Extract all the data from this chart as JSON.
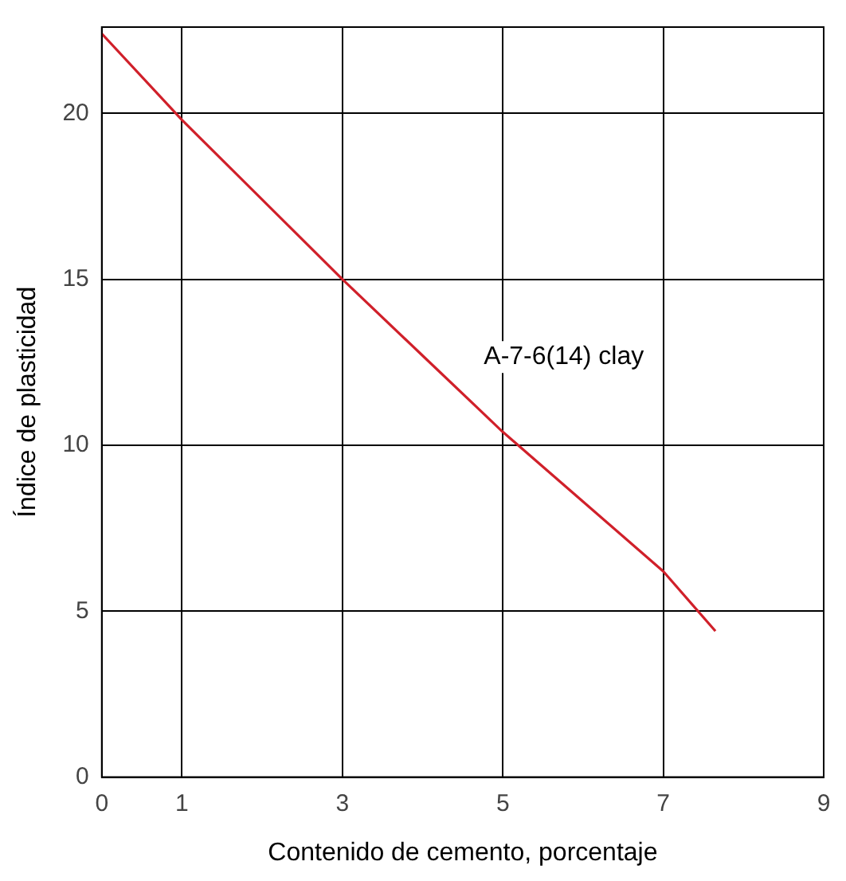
{
  "chart_data": {
    "type": "line",
    "xlabel": "Contenido de cemento, porcentaje",
    "ylabel": "Índice de plasticidad",
    "x": [
      0,
      1,
      2,
      3,
      4,
      5,
      6,
      7,
      7.65
    ],
    "series": [
      {
        "color": "#d0202a",
        "values": [
          22.4,
          19.8,
          17.4,
          15,
          12.7,
          10.4,
          8.3,
          6.2,
          4.4
        ]
      }
    ],
    "xlim": [
      0,
      9
    ],
    "xticks": [
      0,
      1,
      3,
      5,
      7,
      9
    ],
    "ylim": [
      0,
      22.6
    ],
    "yticks": [
      0,
      5,
      10,
      15,
      20
    ],
    "grid": true,
    "legend": false,
    "marker": "none",
    "line_style": "solid",
    "annotations": [
      "A-7-6(14) clay"
    ]
  }
}
